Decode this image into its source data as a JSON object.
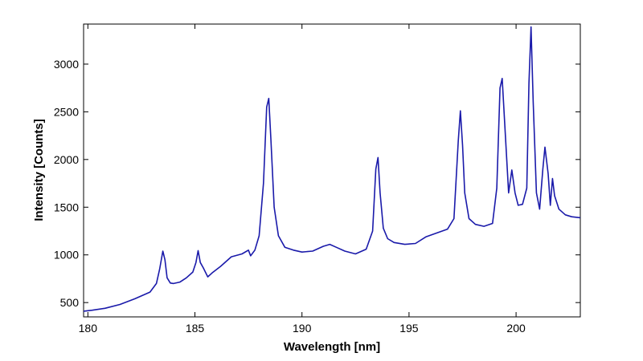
{
  "chart_data": {
    "type": "line",
    "title": "",
    "xlabel": "Wavelength [nm]",
    "ylabel": "Intensity [Counts]",
    "xlim": [
      179.8,
      203.0
    ],
    "ylim": [
      350,
      3420
    ],
    "xticks": [
      180,
      185,
      190,
      195,
      200
    ],
    "yticks": [
      500,
      1000,
      1500,
      2000,
      2500,
      3000
    ],
    "grid": false,
    "line_color": "#1a1aaa",
    "series": [
      {
        "x": [
          179.8,
          180.2,
          180.8,
          181.5,
          182.2,
          182.9,
          183.2,
          183.35,
          183.5,
          183.6,
          183.7,
          183.85,
          184.0,
          184.3,
          184.6,
          184.9,
          185.05,
          185.15,
          185.25,
          185.4,
          185.6,
          185.8,
          186.2,
          186.7,
          187.2,
          187.5,
          187.6,
          187.8,
          188.0,
          188.2,
          188.35,
          188.45,
          188.55,
          188.7,
          188.9,
          189.2,
          189.6,
          190.0,
          190.5,
          191.0,
          191.3,
          191.6,
          192.0,
          192.5,
          193.0,
          193.3,
          193.45,
          193.55,
          193.65,
          193.8,
          194.0,
          194.3,
          194.8,
          195.3,
          195.8,
          196.3,
          196.8,
          197.1,
          197.3,
          197.4,
          197.5,
          197.6,
          197.8,
          198.1,
          198.5,
          198.9,
          199.1,
          199.25,
          199.35,
          199.5,
          199.65,
          199.8,
          199.95,
          200.1,
          200.3,
          200.5,
          200.6,
          200.7,
          200.8,
          200.95,
          201.1,
          201.25,
          201.35,
          201.5,
          201.6,
          201.7,
          201.8,
          202.0,
          202.3,
          202.6,
          203.0
        ],
        "y": [
          410,
          420,
          440,
          480,
          540,
          610,
          700,
          850,
          1040,
          950,
          760,
          705,
          700,
          715,
          760,
          820,
          920,
          1045,
          920,
          860,
          770,
          810,
          880,
          980,
          1010,
          1050,
          990,
          1050,
          1200,
          1750,
          2550,
          2640,
          2200,
          1500,
          1200,
          1080,
          1050,
          1030,
          1040,
          1090,
          1110,
          1080,
          1040,
          1010,
          1060,
          1250,
          1900,
          2020,
          1650,
          1280,
          1170,
          1130,
          1110,
          1120,
          1190,
          1230,
          1270,
          1380,
          2200,
          2510,
          2150,
          1650,
          1380,
          1320,
          1300,
          1330,
          1700,
          2750,
          2850,
          2250,
          1650,
          1890,
          1650,
          1520,
          1530,
          1700,
          2800,
          3390,
          2600,
          1650,
          1480,
          1900,
          2130,
          1850,
          1520,
          1800,
          1620,
          1480,
          1420,
          1400,
          1390
        ]
      }
    ]
  }
}
